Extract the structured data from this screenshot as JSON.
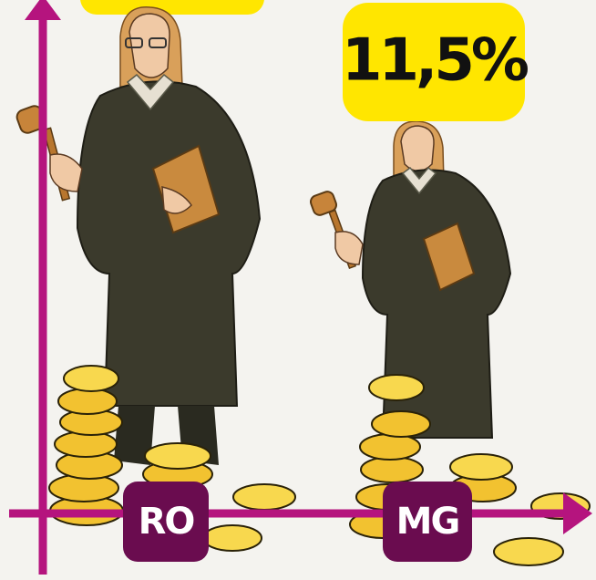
{
  "badges": [
    "11,5%"
  ],
  "categories": [
    "RO",
    "MG"
  ]
}
